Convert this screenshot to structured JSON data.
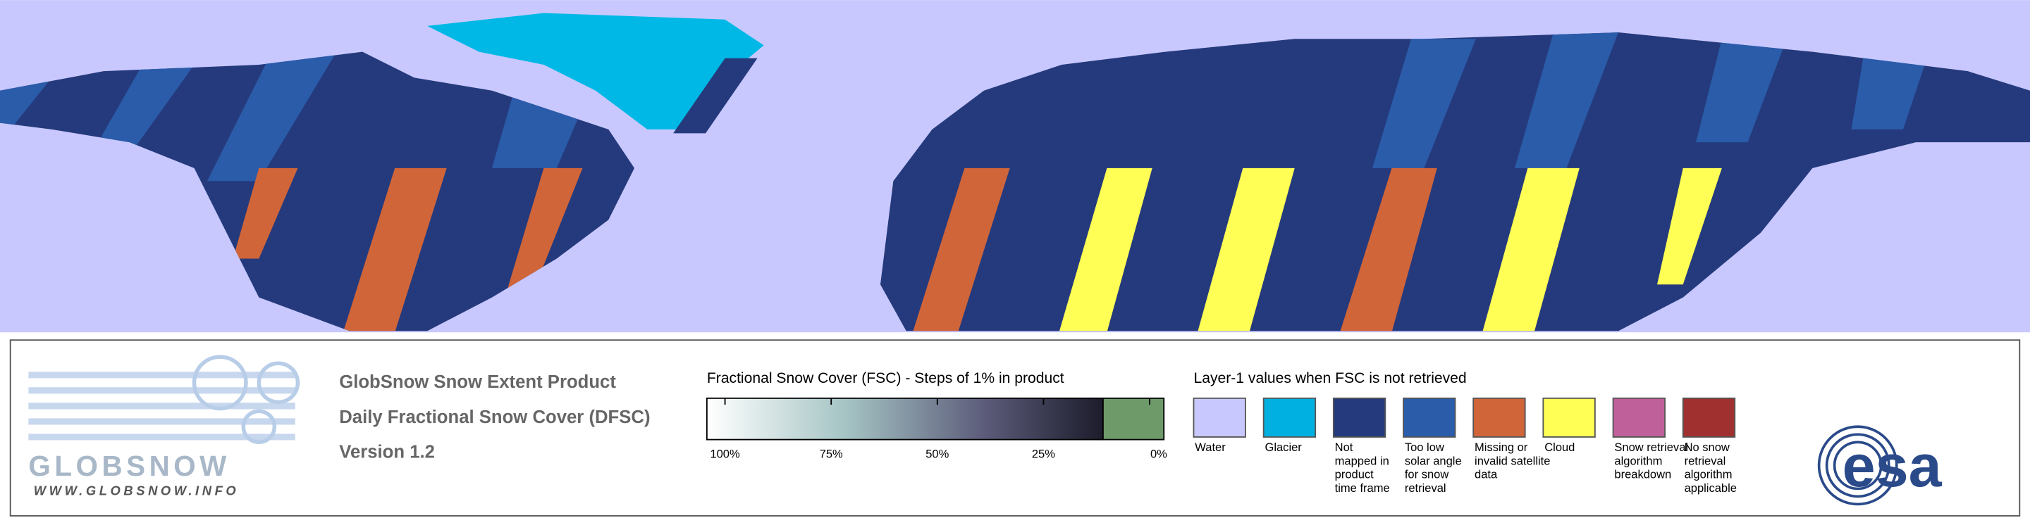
{
  "logo": {
    "name": "GLOBSNOW",
    "url": "WWW.GLOBSNOW.INFO"
  },
  "product": {
    "lines": [
      "GlobSnow Snow Extent Product",
      "Daily Fractional Snow Cover (DFSC)",
      "Version 1.2"
    ]
  },
  "fsc_scale": {
    "title": "Fractional Snow Cover (FSC) - Steps of 1% in product",
    "ticks": [
      {
        "value": 100,
        "label": "100%"
      },
      {
        "value": 75,
        "label": "75%"
      },
      {
        "value": 50,
        "label": "50%"
      },
      {
        "value": 25,
        "label": "25%"
      },
      {
        "value": 0,
        "label": "0%"
      }
    ]
  },
  "layer1": {
    "title": "Layer-1 values when FSC is not retrieved",
    "items": [
      {
        "label": [
          "Water"
        ],
        "color": "#c8c8ff"
      },
      {
        "label": [
          "Glacier"
        ],
        "color": "#00b0e0"
      },
      {
        "label": [
          "Not",
          "mapped in",
          "product",
          "time frame"
        ],
        "color": "#253a7c"
      },
      {
        "label": [
          "Too low",
          "solar angle",
          "for snow",
          "retrieval"
        ],
        "color": "#2a5caa"
      },
      {
        "label": [
          "Missing or",
          "invalid satellite",
          "data"
        ],
        "color": "#d0653a"
      },
      {
        "label": [
          "Cloud"
        ],
        "color": "#ffff55"
      },
      {
        "label": [
          "Snow retrieval",
          "algorithm",
          "breakdown"
        ],
        "color": "#c0609a"
      },
      {
        "label": [
          "No snow",
          "retrieval",
          "algorithm",
          "applicable"
        ],
        "color": "#a03030"
      }
    ]
  },
  "esa": "esa"
}
